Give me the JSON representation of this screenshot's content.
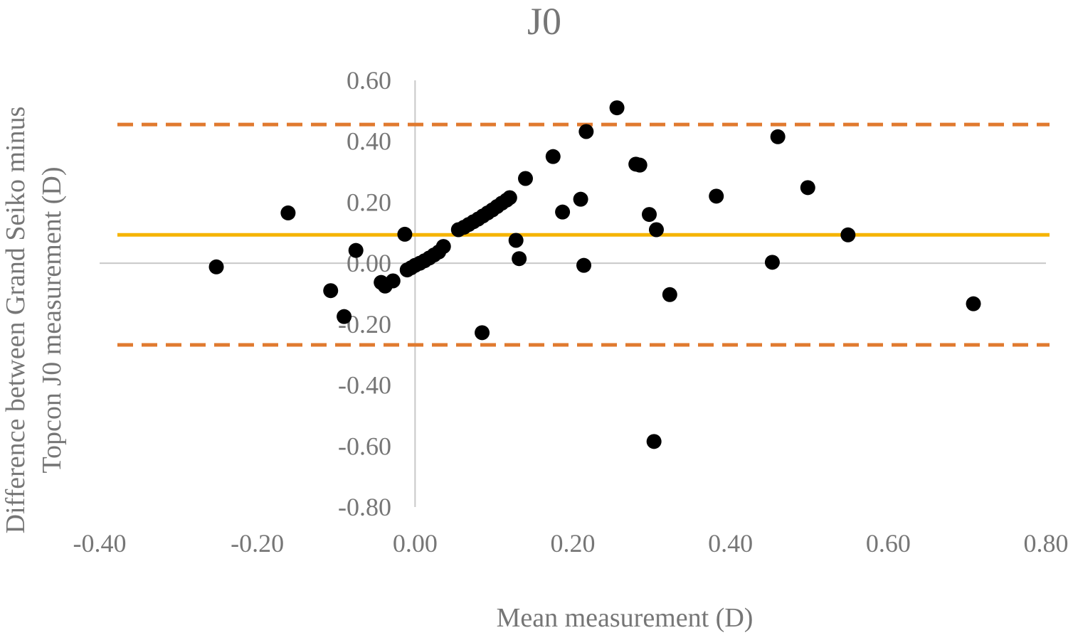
{
  "chart_data": {
    "type": "scatter",
    "title": "J0",
    "xlabel": "Mean measurement (D)",
    "ylabel": [
      "Difference between Grand Seiko minus",
      "Topcon J0 measurement (D)"
    ],
    "xlim": [
      -0.4,
      0.8
    ],
    "ylim": [
      -0.8,
      0.6
    ],
    "x_ticks": [
      "-0.40",
      "-0.20",
      "0.00",
      "0.20",
      "0.40",
      "0.60",
      "0.80"
    ],
    "y_ticks": [
      "0.60",
      "0.40",
      "0.20",
      "0.00",
      "-0.20",
      "-0.40",
      "-0.60",
      "-0.80"
    ],
    "x_tick_values": [
      -0.4,
      -0.2,
      0.0,
      0.2,
      0.4,
      0.6,
      0.8
    ],
    "y_tick_values": [
      0.6,
      0.4,
      0.2,
      0.0,
      -0.2,
      -0.4,
      -0.6,
      -0.8
    ],
    "grid": false,
    "mean_line": {
      "y": 0.093,
      "color": "#f5b400",
      "style": "solid"
    },
    "limit_lines": [
      {
        "y": 0.455,
        "color": "#e07a2f",
        "style": "dashed"
      },
      {
        "y": -0.268,
        "color": "#e07a2f",
        "style": "dashed"
      }
    ],
    "point_color": "#000000",
    "points": [
      {
        "x": -0.252,
        "y": -0.012
      },
      {
        "x": -0.161,
        "y": 0.165
      },
      {
        "x": -0.107,
        "y": -0.09
      },
      {
        "x": -0.09,
        "y": -0.175
      },
      {
        "x": -0.075,
        "y": 0.042
      },
      {
        "x": -0.043,
        "y": -0.063
      },
      {
        "x": -0.038,
        "y": -0.075
      },
      {
        "x": -0.028,
        "y": -0.058
      },
      {
        "x": -0.013,
        "y": 0.095
      },
      {
        "x": -0.01,
        "y": -0.022
      },
      {
        "x": -0.005,
        "y": -0.015
      },
      {
        "x": 0.0,
        "y": -0.007
      },
      {
        "x": 0.006,
        "y": 0.0
      },
      {
        "x": 0.012,
        "y": 0.008
      },
      {
        "x": 0.018,
        "y": 0.017
      },
      {
        "x": 0.024,
        "y": 0.027
      },
      {
        "x": 0.03,
        "y": 0.037
      },
      {
        "x": 0.036,
        "y": 0.055
      },
      {
        "x": 0.055,
        "y": 0.11
      },
      {
        "x": 0.062,
        "y": 0.118
      },
      {
        "x": 0.068,
        "y": 0.127
      },
      {
        "x": 0.074,
        "y": 0.136
      },
      {
        "x": 0.08,
        "y": 0.145
      },
      {
        "x": 0.086,
        "y": 0.155
      },
      {
        "x": 0.092,
        "y": 0.165
      },
      {
        "x": 0.098,
        "y": 0.175
      },
      {
        "x": 0.104,
        "y": 0.186
      },
      {
        "x": 0.11,
        "y": 0.197
      },
      {
        "x": 0.116,
        "y": 0.207
      },
      {
        "x": 0.12,
        "y": 0.215
      },
      {
        "x": 0.085,
        "y": -0.228
      },
      {
        "x": 0.128,
        "y": 0.075
      },
      {
        "x": 0.132,
        "y": 0.015
      },
      {
        "x": 0.14,
        "y": 0.278
      },
      {
        "x": 0.175,
        "y": 0.35
      },
      {
        "x": 0.187,
        "y": 0.168
      },
      {
        "x": 0.21,
        "y": 0.21
      },
      {
        "x": 0.214,
        "y": -0.007
      },
      {
        "x": 0.217,
        "y": 0.432
      },
      {
        "x": 0.256,
        "y": 0.51
      },
      {
        "x": 0.28,
        "y": 0.325
      },
      {
        "x": 0.285,
        "y": 0.322
      },
      {
        "x": 0.297,
        "y": 0.16
      },
      {
        "x": 0.303,
        "y": -0.585
      },
      {
        "x": 0.306,
        "y": 0.11
      },
      {
        "x": 0.323,
        "y": -0.103
      },
      {
        "x": 0.382,
        "y": 0.22
      },
      {
        "x": 0.453,
        "y": 0.003
      },
      {
        "x": 0.46,
        "y": 0.415
      },
      {
        "x": 0.498,
        "y": 0.248
      },
      {
        "x": 0.549,
        "y": 0.093
      },
      {
        "x": 0.708,
        "y": -0.133
      }
    ]
  }
}
